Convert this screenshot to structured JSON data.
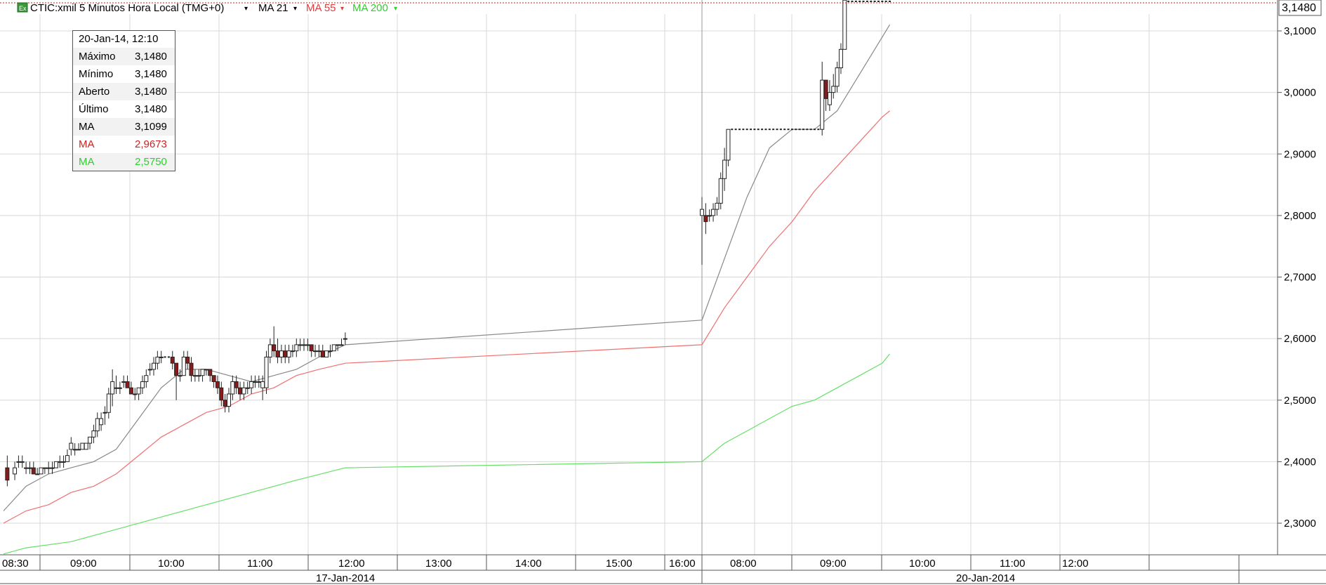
{
  "header": {
    "badge_icon": "chart-badge-icon",
    "symbol_label": "CTIC:xmil 5 Minutos Hora Local (TMG+0)",
    "indicators": [
      {
        "label": "MA 21",
        "color": "#333333"
      },
      {
        "label": "MA 55",
        "color": "#e03c3c"
      },
      {
        "label": "MA 200",
        "color": "#33cc33"
      }
    ]
  },
  "info": {
    "date": "20-Jan-14, 12:10",
    "rows": [
      {
        "label": "Máximo",
        "value": "3,1480",
        "color": "#000000"
      },
      {
        "label": "Mínimo",
        "value": "3,1480",
        "color": "#000000"
      },
      {
        "label": "Aberto",
        "value": "3,1480",
        "color": "#000000"
      },
      {
        "label": "Último",
        "value": "3,1480",
        "color": "#000000"
      },
      {
        "label": "MA",
        "value": "3,1099",
        "color": "#000000"
      },
      {
        "label": "MA",
        "value": "2,9673",
        "color": "#cc2222"
      },
      {
        "label": "MA",
        "value": "2,5750",
        "color": "#33cc33"
      }
    ]
  },
  "chart_data": {
    "type": "candlestick",
    "last_price_label": "3,1480",
    "ylim": [
      2.25,
      3.15
    ],
    "y_ticks": [
      2.3,
      2.4,
      2.5,
      2.6,
      2.7,
      2.8,
      2.9,
      3.0,
      3.1
    ],
    "y_tick_labels": [
      "2,3000",
      "2,4000",
      "2,5000",
      "2,6000",
      "2,7000",
      "2,8000",
      "2,9000",
      "3,0000",
      "3,1000"
    ],
    "x_tick_labels": [
      "08:30",
      "09:00",
      "10:00",
      "11:00",
      "12:00",
      "13:00",
      "14:00",
      "15:00",
      "16:00",
      "08:00",
      "09:00",
      "10:00",
      "11:00",
      "12:00"
    ],
    "date_labels": [
      "17-Jan-2014",
      "20-Jan-2014"
    ],
    "candles": [
      [
        "17-Jan 08:35",
        2.39,
        2.41,
        2.36,
        2.37
      ],
      [
        "17-Jan 08:45",
        2.38,
        2.4,
        2.37,
        2.39
      ],
      [
        "17-Jan 08:50",
        2.4,
        2.41,
        2.39,
        2.4
      ],
      [
        "17-Jan 08:55",
        2.4,
        2.41,
        2.39,
        2.4
      ],
      [
        "17-Jan 09:00",
        2.39,
        2.4,
        2.38,
        2.39
      ],
      [
        "17-Jan 09:05",
        2.39,
        2.4,
        2.38,
        2.39
      ],
      [
        "17-Jan 09:10",
        2.39,
        2.4,
        2.38,
        2.38
      ],
      [
        "17-Jan 09:15",
        2.38,
        2.39,
        2.38,
        2.38
      ],
      [
        "17-Jan 09:20",
        2.38,
        2.39,
        2.38,
        2.39
      ],
      [
        "17-Jan 09:25",
        2.39,
        2.39,
        2.38,
        2.39
      ],
      [
        "17-Jan 09:30",
        2.39,
        2.4,
        2.38,
        2.39
      ],
      [
        "17-Jan 09:35",
        2.39,
        2.4,
        2.38,
        2.39
      ],
      [
        "17-Jan 09:40",
        2.39,
        2.4,
        2.39,
        2.4
      ],
      [
        "17-Jan 09:45",
        2.4,
        2.41,
        2.39,
        2.4
      ],
      [
        "17-Jan 09:50",
        2.4,
        2.41,
        2.39,
        2.4
      ],
      [
        "17-Jan 09:55",
        2.4,
        2.42,
        2.4,
        2.41
      ],
      [
        "17-Jan 10:00",
        2.42,
        2.44,
        2.41,
        2.43
      ],
      [
        "17-Jan 10:05",
        2.42,
        2.43,
        2.41,
        2.42
      ],
      [
        "17-Jan 10:10",
        2.42,
        2.43,
        2.42,
        2.42
      ],
      [
        "17-Jan 10:15",
        2.42,
        2.43,
        2.42,
        2.43
      ],
      [
        "17-Jan 10:20",
        2.42,
        2.43,
        2.42,
        2.43
      ],
      [
        "17-Jan 10:25",
        2.43,
        2.44,
        2.42,
        2.44
      ],
      [
        "17-Jan 10:30",
        2.44,
        2.46,
        2.43,
        2.45
      ],
      [
        "17-Jan 10:35",
        2.45,
        2.48,
        2.44,
        2.47
      ],
      [
        "17-Jan 10:40",
        2.46,
        2.48,
        2.45,
        2.47
      ],
      [
        "17-Jan 10:45",
        2.48,
        2.49,
        2.46,
        2.48
      ],
      [
        "17-Jan 10:50",
        2.48,
        2.52,
        2.47,
        2.51
      ],
      [
        "17-Jan 10:55",
        2.51,
        2.55,
        2.49,
        2.53
      ],
      [
        "17-Jan 11:00",
        2.52,
        2.54,
        2.51,
        2.52
      ],
      [
        "17-Jan 11:05",
        2.52,
        2.53,
        2.51,
        2.52
      ],
      [
        "17-Jan 11:10",
        2.53,
        2.54,
        2.52,
        2.53
      ],
      [
        "17-Jan 11:15",
        2.53,
        2.54,
        2.52,
        2.52
      ],
      [
        "17-Jan 11:20",
        2.52,
        2.53,
        2.51,
        2.51
      ],
      [
        "17-Jan 11:25",
        2.51,
        2.52,
        2.5,
        2.51
      ],
      [
        "17-Jan 11:30",
        2.51,
        2.52,
        2.5,
        2.52
      ],
      [
        "17-Jan 11:35",
        2.52,
        2.54,
        2.51,
        2.53
      ],
      [
        "17-Jan 11:40",
        2.53,
        2.55,
        2.52,
        2.54
      ],
      [
        "17-Jan 11:45",
        2.55,
        2.56,
        2.54,
        2.55
      ],
      [
        "17-Jan 11:50",
        2.55,
        2.57,
        2.54,
        2.56
      ],
      [
        "17-Jan 11:55",
        2.56,
        2.58,
        2.55,
        2.57
      ],
      [
        "17-Jan 12:00",
        2.57,
        2.58,
        2.56,
        2.57
      ],
      [
        "17-Jan 12:05",
        2.57,
        2.57,
        2.57,
        2.57
      ],
      [
        "17-Jan 12:10",
        2.57,
        2.57,
        2.57,
        2.57
      ],
      [
        "17-Jan 12:15",
        2.57,
        2.58,
        2.55,
        2.56
      ],
      [
        "17-Jan 12:20",
        2.56,
        2.56,
        2.5,
        2.54
      ],
      [
        "17-Jan 12:25",
        2.54,
        2.55,
        2.53,
        2.54
      ],
      [
        "17-Jan 12:30",
        2.54,
        2.58,
        2.54,
        2.57
      ],
      [
        "17-Jan 12:35",
        2.57,
        2.58,
        2.55,
        2.56
      ],
      [
        "17-Jan 12:40",
        2.56,
        2.57,
        2.53,
        2.54
      ],
      [
        "17-Jan 12:45",
        2.54,
        2.55,
        2.53,
        2.54
      ],
      [
        "17-Jan 12:50",
        2.54,
        2.55,
        2.53,
        2.54
      ],
      [
        "17-Jan 12:55",
        2.54,
        2.55,
        2.53,
        2.55
      ],
      [
        "17-Jan 13:00",
        2.55,
        2.55,
        2.54,
        2.55
      ],
      [
        "17-Jan 13:05",
        2.55,
        2.55,
        2.53,
        2.54
      ],
      [
        "17-Jan 13:10",
        2.54,
        2.54,
        2.52,
        2.53
      ],
      [
        "17-Jan 13:15",
        2.53,
        2.54,
        2.51,
        2.52
      ],
      [
        "17-Jan 13:20",
        2.52,
        2.53,
        2.49,
        2.5
      ],
      [
        "17-Jan 13:25",
        2.5,
        2.51,
        2.48,
        2.49
      ],
      [
        "17-Jan 13:30",
        2.49,
        2.52,
        2.48,
        2.51
      ],
      [
        "17-Jan 13:35",
        2.51,
        2.54,
        2.5,
        2.53
      ],
      [
        "17-Jan 13:40",
        2.53,
        2.54,
        2.51,
        2.52
      ],
      [
        "17-Jan 13:45",
        2.52,
        2.53,
        2.5,
        2.51
      ],
      [
        "17-Jan 13:50",
        2.51,
        2.53,
        2.5,
        2.52
      ],
      [
        "17-Jan 13:55",
        2.52,
        2.53,
        2.51,
        2.52
      ],
      [
        "17-Jan 14:00",
        2.52,
        2.54,
        2.51,
        2.53
      ],
      [
        "17-Jan 14:05",
        2.53,
        2.54,
        2.52,
        2.53
      ],
      [
        "17-Jan 14:10",
        2.53,
        2.54,
        2.52,
        2.53
      ],
      [
        "17-Jan 14:15",
        2.52,
        2.54,
        2.5,
        2.53
      ],
      [
        "17-Jan 14:20",
        2.52,
        2.58,
        2.51,
        2.57
      ],
      [
        "17-Jan 14:25",
        2.57,
        2.6,
        2.56,
        2.59
      ],
      [
        "17-Jan 14:30",
        2.59,
        2.62,
        2.57,
        2.58
      ],
      [
        "17-Jan 14:35",
        2.58,
        2.6,
        2.56,
        2.57
      ],
      [
        "17-Jan 14:40",
        2.57,
        2.59,
        2.56,
        2.58
      ],
      [
        "17-Jan 14:45",
        2.58,
        2.59,
        2.56,
        2.57
      ],
      [
        "17-Jan 14:50",
        2.57,
        2.59,
        2.56,
        2.58
      ],
      [
        "17-Jan 14:55",
        2.58,
        2.59,
        2.57,
        2.58
      ],
      [
        "17-Jan 15:00",
        2.58,
        2.6,
        2.57,
        2.59
      ],
      [
        "17-Jan 15:05",
        2.59,
        2.6,
        2.58,
        2.59
      ],
      [
        "17-Jan 15:10",
        2.59,
        2.6,
        2.58,
        2.59
      ],
      [
        "17-Jan 15:15",
        2.59,
        2.6,
        2.58,
        2.59
      ],
      [
        "17-Jan 15:20",
        2.59,
        2.59,
        2.57,
        2.58
      ],
      [
        "17-Jan 15:25",
        2.58,
        2.59,
        2.57,
        2.58
      ],
      [
        "17-Jan 15:30",
        2.58,
        2.59,
        2.57,
        2.58
      ],
      [
        "17-Jan 15:35",
        2.58,
        2.59,
        2.57,
        2.57
      ],
      [
        "17-Jan 15:40",
        2.57,
        2.58,
        2.57,
        2.58
      ],
      [
        "17-Jan 15:45",
        2.58,
        2.59,
        2.57,
        2.58
      ],
      [
        "17-Jan 15:50",
        2.58,
        2.59,
        2.58,
        2.59
      ],
      [
        "17-Jan 15:55",
        2.59,
        2.59,
        2.58,
        2.59
      ],
      [
        "17-Jan 16:00",
        2.59,
        2.6,
        2.59,
        2.59
      ],
      [
        "17-Jan 16:05",
        2.6,
        2.61,
        2.59,
        2.6
      ],
      [
        "20-Jan 08:00",
        2.8,
        2.83,
        2.72,
        2.81
      ],
      [
        "20-Jan 08:05",
        2.8,
        2.82,
        2.77,
        2.79
      ],
      [
        "20-Jan 08:10",
        2.8,
        2.81,
        2.79,
        2.8
      ],
      [
        "20-Jan 08:15",
        2.8,
        2.82,
        2.79,
        2.81
      ],
      [
        "20-Jan 08:20",
        2.81,
        2.83,
        2.8,
        2.82
      ],
      [
        "20-Jan 08:25",
        2.82,
        2.87,
        2.81,
        2.86
      ],
      [
        "20-Jan 08:30",
        2.86,
        2.91,
        2.84,
        2.89
      ],
      [
        "20-Jan 08:35",
        2.89,
        2.94,
        2.88,
        2.94
      ],
      [
        "20-Jan 08:40",
        2.94,
        2.94,
        2.94,
        2.94
      ],
      [
        "20-Jan 08:45",
        2.94,
        2.94,
        2.94,
        2.94
      ],
      [
        "20-Jan 08:50",
        2.94,
        2.94,
        2.94,
        2.94
      ],
      [
        "20-Jan 08:55",
        2.94,
        2.94,
        2.94,
        2.94
      ],
      [
        "20-Jan 09:00",
        2.94,
        2.94,
        2.94,
        2.94
      ],
      [
        "20-Jan 09:05",
        2.94,
        2.94,
        2.94,
        2.94
      ],
      [
        "20-Jan 09:10",
        2.94,
        2.94,
        2.94,
        2.94
      ],
      [
        "20-Jan 09:15",
        2.94,
        2.94,
        2.94,
        2.94
      ],
      [
        "20-Jan 09:20",
        2.94,
        2.94,
        2.94,
        2.94
      ],
      [
        "20-Jan 09:25",
        2.94,
        2.94,
        2.94,
        2.94
      ],
      [
        "20-Jan 09:30",
        2.94,
        2.94,
        2.94,
        2.94
      ],
      [
        "20-Jan 09:35",
        2.94,
        2.94,
        2.94,
        2.94
      ],
      [
        "20-Jan 09:40",
        2.94,
        2.94,
        2.94,
        2.94
      ],
      [
        "20-Jan 09:45",
        2.94,
        2.94,
        2.94,
        2.94
      ],
      [
        "20-Jan 09:50",
        2.94,
        2.94,
        2.94,
        2.94
      ],
      [
        "20-Jan 09:55",
        2.94,
        2.94,
        2.94,
        2.94
      ],
      [
        "20-Jan 10:00",
        2.94,
        2.94,
        2.94,
        2.94
      ],
      [
        "20-Jan 10:05",
        2.94,
        2.94,
        2.94,
        2.94
      ],
      [
        "20-Jan 10:10",
        2.94,
        2.94,
        2.94,
        2.94
      ],
      [
        "20-Jan 10:15",
        2.94,
        2.94,
        2.94,
        2.94
      ],
      [
        "20-Jan 10:20",
        2.94,
        2.94,
        2.94,
        2.94
      ],
      [
        "20-Jan 10:25",
        2.94,
        2.94,
        2.94,
        2.94
      ],
      [
        "20-Jan 10:30",
        2.94,
        2.94,
        2.94,
        2.94
      ],
      [
        "20-Jan 10:35",
        2.94,
        2.94,
        2.94,
        2.94
      ],
      [
        "20-Jan 10:40",
        2.94,
        3.05,
        2.93,
        3.02
      ],
      [
        "20-Jan 10:45",
        3.02,
        3.02,
        2.97,
        2.99
      ],
      [
        "20-Jan 10:50",
        2.98,
        3.02,
        2.97,
        3.0
      ],
      [
        "20-Jan 10:55",
        3.0,
        3.03,
        2.99,
        3.01
      ],
      [
        "20-Jan 11:00",
        3.01,
        3.05,
        3.0,
        3.04
      ],
      [
        "20-Jan 11:05",
        3.04,
        3.08,
        3.03,
        3.07
      ],
      [
        "20-Jan 11:10",
        3.07,
        3.15,
        3.07,
        3.15
      ],
      [
        "20-Jan 11:15",
        3.148,
        3.148,
        3.148,
        3.148
      ],
      [
        "20-Jan 11:20",
        3.148,
        3.148,
        3.148,
        3.148
      ],
      [
        "20-Jan 11:25",
        3.148,
        3.148,
        3.148,
        3.148
      ],
      [
        "20-Jan 11:30",
        3.148,
        3.148,
        3.148,
        3.148
      ],
      [
        "20-Jan 11:35",
        3.148,
        3.148,
        3.148,
        3.148
      ],
      [
        "20-Jan 11:40",
        3.148,
        3.148,
        3.148,
        3.148
      ],
      [
        "20-Jan 11:45",
        3.148,
        3.148,
        3.148,
        3.148
      ],
      [
        "20-Jan 11:50",
        3.148,
        3.148,
        3.148,
        3.148
      ],
      [
        "20-Jan 11:55",
        3.148,
        3.148,
        3.148,
        3.148
      ],
      [
        "20-Jan 12:00",
        3.148,
        3.148,
        3.148,
        3.148
      ],
      [
        "20-Jan 12:05",
        3.148,
        3.148,
        3.148,
        3.148
      ],
      [
        "20-Jan 12:10",
        3.148,
        3.148,
        3.148,
        3.148
      ]
    ],
    "ma_series": [
      {
        "name": "MA 21",
        "color": "#888888",
        "x": [
          "17-Jan 08:30",
          "17-Jan 09:00",
          "17-Jan 09:30",
          "17-Jan 10:00",
          "17-Jan 10:30",
          "17-Jan 11:00",
          "17-Jan 11:30",
          "17-Jan 12:00",
          "17-Jan 12:30",
          "17-Jan 13:00",
          "17-Jan 13:30",
          "17-Jan 14:00",
          "17-Jan 14:30",
          "17-Jan 15:00",
          "17-Jan 15:30",
          "17-Jan 16:05",
          "20-Jan 08:00",
          "20-Jan 08:30",
          "20-Jan 09:00",
          "20-Jan 09:30",
          "20-Jan 10:00",
          "20-Jan 10:30",
          "20-Jan 11:00",
          "20-Jan 11:30",
          "20-Jan 12:00",
          "20-Jan 12:10"
        ],
        "y": [
          2.32,
          2.36,
          2.38,
          2.39,
          2.4,
          2.42,
          2.47,
          2.52,
          2.55,
          2.55,
          2.54,
          2.53,
          2.54,
          2.55,
          2.57,
          2.59,
          2.63,
          2.73,
          2.83,
          2.91,
          2.94,
          2.94,
          2.97,
          3.03,
          3.09,
          3.11
        ]
      },
      {
        "name": "MA 55",
        "color": "#f07070",
        "x": [
          "17-Jan 08:30",
          "17-Jan 09:00",
          "17-Jan 09:30",
          "17-Jan 10:00",
          "17-Jan 10:30",
          "17-Jan 11:00",
          "17-Jan 11:30",
          "17-Jan 12:00",
          "17-Jan 12:30",
          "17-Jan 13:00",
          "17-Jan 13:30",
          "17-Jan 14:00",
          "17-Jan 14:30",
          "17-Jan 15:00",
          "17-Jan 15:30",
          "17-Jan 16:05",
          "20-Jan 08:00",
          "20-Jan 08:30",
          "20-Jan 09:00",
          "20-Jan 09:30",
          "20-Jan 10:00",
          "20-Jan 10:30",
          "20-Jan 11:00",
          "20-Jan 11:30",
          "20-Jan 12:00",
          "20-Jan 12:10"
        ],
        "y": [
          2.3,
          2.32,
          2.33,
          2.35,
          2.36,
          2.38,
          2.41,
          2.44,
          2.46,
          2.48,
          2.49,
          2.51,
          2.52,
          2.54,
          2.55,
          2.56,
          2.59,
          2.65,
          2.7,
          2.75,
          2.79,
          2.84,
          2.88,
          2.92,
          2.96,
          2.97
        ]
      },
      {
        "name": "MA 200",
        "color": "#66e066",
        "x": [
          "17-Jan 08:30",
          "17-Jan 09:00",
          "17-Jan 10:00",
          "17-Jan 11:00",
          "17-Jan 12:00",
          "17-Jan 13:00",
          "17-Jan 14:00",
          "17-Jan 15:00",
          "17-Jan 16:05",
          "20-Jan 08:00",
          "20-Jan 08:30",
          "20-Jan 09:00",
          "20-Jan 09:30",
          "20-Jan 10:00",
          "20-Jan 10:30",
          "20-Jan 11:00",
          "20-Jan 11:30",
          "20-Jan 12:00",
          "20-Jan 12:10"
        ],
        "y": [
          2.25,
          2.26,
          2.27,
          2.29,
          2.31,
          2.33,
          2.35,
          2.37,
          2.39,
          2.4,
          2.43,
          2.45,
          2.47,
          2.49,
          2.5,
          2.52,
          2.54,
          2.56,
          2.575
        ]
      }
    ]
  }
}
